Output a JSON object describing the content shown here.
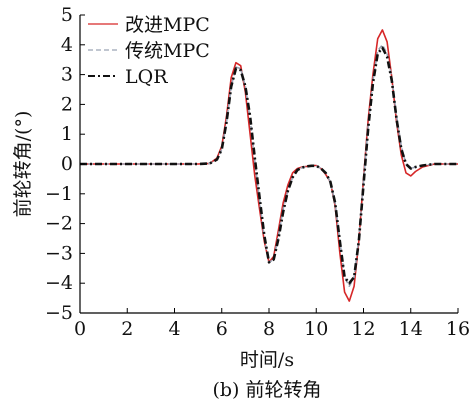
{
  "figure": {
    "caption": "(b) 前轮转角"
  },
  "chart_data": {
    "type": "line",
    "xlabel": "时间/s",
    "ylabel": "前轮转角/(°)",
    "xlim": [
      0,
      16
    ],
    "ylim": [
      -5,
      5
    ],
    "xticks": [
      0,
      2,
      4,
      6,
      8,
      10,
      12,
      14,
      16
    ],
    "yticks": [
      -5,
      -4,
      -3,
      -2,
      -1,
      0,
      1,
      2,
      3,
      4,
      5
    ],
    "grid": false,
    "legend": "top-left",
    "series": [
      {
        "name": "改进MPC",
        "color": "#d62728",
        "style": "solid",
        "x": [
          0,
          1,
          2,
          3,
          4,
          5,
          5.5,
          5.8,
          6.0,
          6.2,
          6.4,
          6.6,
          6.8,
          7.0,
          7.2,
          7.4,
          7.6,
          7.8,
          8.0,
          8.2,
          8.4,
          8.6,
          8.8,
          9.0,
          9.2,
          9.4,
          9.6,
          9.8,
          10.0,
          10.2,
          10.4,
          10.6,
          10.8,
          11.0,
          11.2,
          11.4,
          11.6,
          11.8,
          12.0,
          12.2,
          12.4,
          12.6,
          12.8,
          13.0,
          13.2,
          13.4,
          13.6,
          13.8,
          14.0,
          14.2,
          14.5,
          15.0,
          16.0
        ],
        "y": [
          0,
          0,
          0,
          0,
          0,
          0,
          0.02,
          0.2,
          0.6,
          1.6,
          2.9,
          3.4,
          3.3,
          2.4,
          1.0,
          -0.4,
          -1.5,
          -2.6,
          -3.3,
          -3.1,
          -2.2,
          -1.3,
          -0.7,
          -0.3,
          -0.15,
          -0.1,
          -0.08,
          -0.05,
          -0.05,
          -0.15,
          -0.35,
          -0.6,
          -1.4,
          -3.0,
          -4.3,
          -4.6,
          -4.1,
          -2.6,
          -0.5,
          1.5,
          3.0,
          4.2,
          4.5,
          4.1,
          2.9,
          1.4,
          0.3,
          -0.3,
          -0.4,
          -0.25,
          -0.1,
          0.0,
          0.0
        ]
      },
      {
        "name": "传统MPC",
        "color": "#9aa3b5",
        "style": "dashed",
        "x": [
          0,
          1,
          2,
          3,
          4,
          5,
          5.5,
          5.8,
          6.0,
          6.2,
          6.4,
          6.6,
          6.8,
          7.0,
          7.2,
          7.4,
          7.6,
          7.8,
          8.0,
          8.2,
          8.4,
          8.6,
          8.8,
          9.0,
          9.2,
          9.4,
          9.6,
          9.8,
          10.0,
          10.2,
          10.4,
          10.6,
          10.8,
          11.0,
          11.2,
          11.4,
          11.6,
          11.8,
          12.0,
          12.2,
          12.4,
          12.6,
          12.8,
          13.0,
          13.2,
          13.4,
          13.6,
          13.8,
          14.0,
          14.2,
          14.5,
          15.0,
          16.0
        ],
        "y": [
          0,
          0,
          0,
          0,
          0,
          0,
          0.02,
          0.15,
          0.5,
          1.4,
          2.6,
          3.25,
          3.2,
          2.6,
          1.5,
          0.1,
          -1.2,
          -2.5,
          -3.3,
          -3.2,
          -2.4,
          -1.5,
          -0.9,
          -0.45,
          -0.2,
          -0.12,
          -0.08,
          -0.06,
          -0.06,
          -0.15,
          -0.3,
          -0.6,
          -1.3,
          -2.6,
          -3.8,
          -4.1,
          -3.8,
          -2.5,
          -0.6,
          1.3,
          2.8,
          3.8,
          4.0,
          3.7,
          2.9,
          1.6,
          0.6,
          0.0,
          -0.15,
          -0.1,
          -0.05,
          0.0,
          0.0
        ]
      },
      {
        "name": "LQR",
        "color": "#111111",
        "style": "dashdot",
        "x": [
          0,
          1,
          2,
          3,
          4,
          5,
          5.5,
          5.8,
          6.0,
          6.2,
          6.4,
          6.6,
          6.8,
          7.0,
          7.2,
          7.4,
          7.6,
          7.8,
          8.0,
          8.2,
          8.4,
          8.6,
          8.8,
          9.0,
          9.2,
          9.4,
          9.6,
          9.8,
          10.0,
          10.2,
          10.4,
          10.6,
          10.8,
          11.0,
          11.2,
          11.4,
          11.6,
          11.8,
          12.0,
          12.2,
          12.4,
          12.6,
          12.8,
          13.0,
          13.2,
          13.4,
          13.6,
          13.8,
          14.0,
          14.2,
          14.5,
          15.0,
          16.0
        ],
        "y": [
          0,
          0,
          0,
          0,
          0,
          0,
          0.02,
          0.15,
          0.5,
          1.4,
          2.6,
          3.2,
          3.15,
          2.6,
          1.6,
          0.2,
          -1.1,
          -2.4,
          -3.3,
          -3.2,
          -2.5,
          -1.6,
          -0.9,
          -0.45,
          -0.2,
          -0.12,
          -0.08,
          -0.06,
          -0.06,
          -0.15,
          -0.3,
          -0.6,
          -1.3,
          -2.6,
          -3.8,
          -4.0,
          -3.8,
          -2.6,
          -0.7,
          1.2,
          2.7,
          3.7,
          3.9,
          3.6,
          2.8,
          1.5,
          0.5,
          0.0,
          -0.15,
          -0.1,
          -0.05,
          0.0,
          0.0
        ]
      }
    ]
  }
}
